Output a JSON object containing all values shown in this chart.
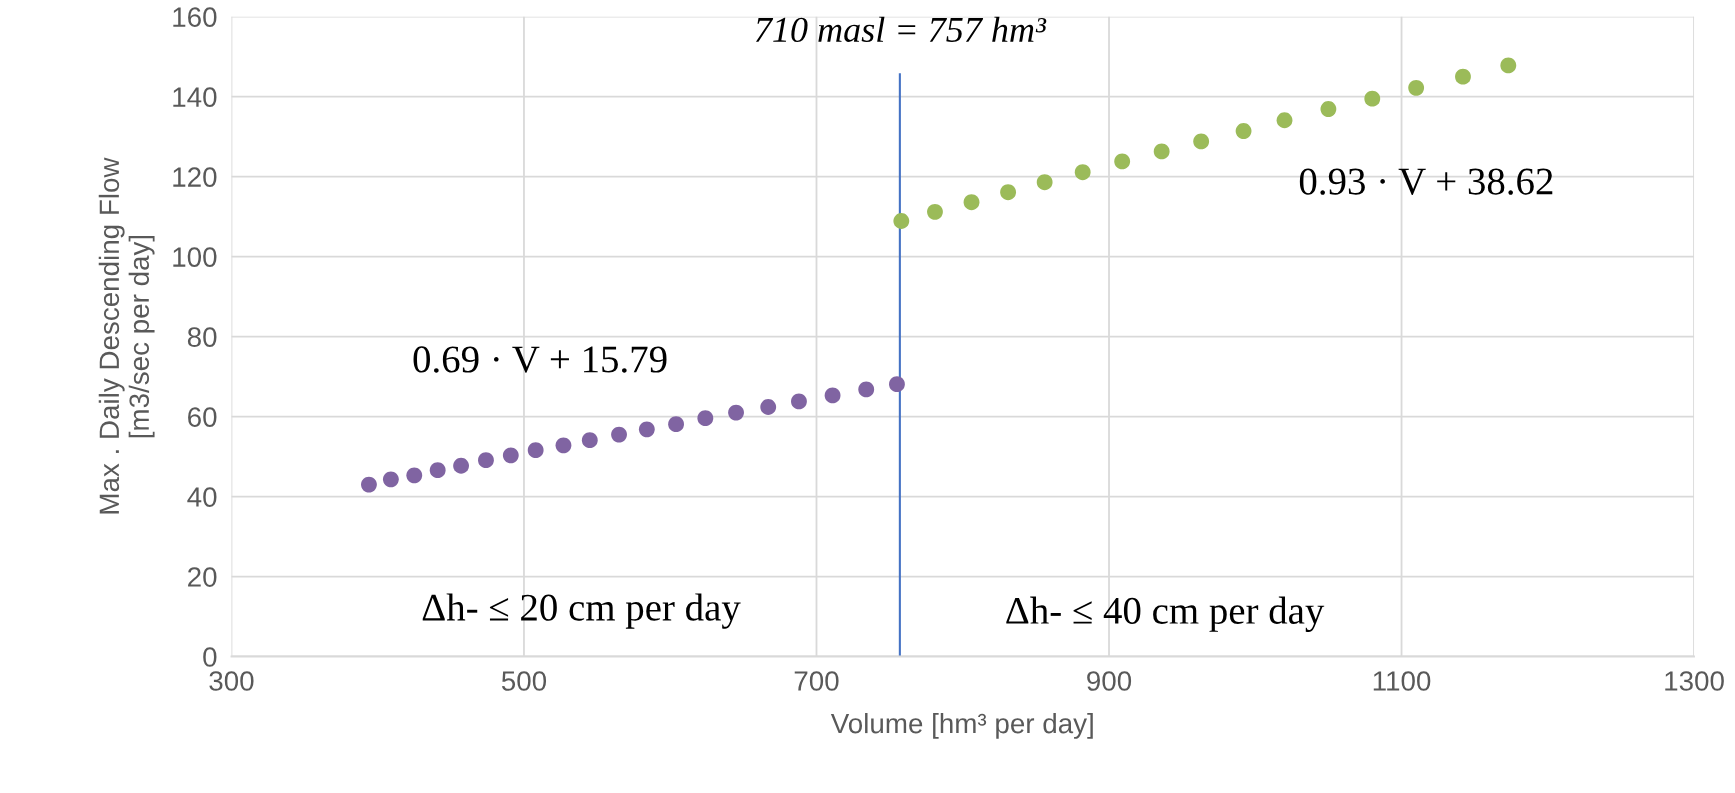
{
  "chart_data": {
    "type": "scatter",
    "xlabel": "Volume [hm³ per day]",
    "ylabel": "Max . Daily Descending Flow\n[m3/sec per day]",
    "series": [
      {
        "color": "#8064a2",
        "x": [
          394,
          409,
          425,
          441,
          457,
          474,
          491,
          508,
          527,
          545,
          565,
          584,
          604,
          624,
          645,
          667,
          688,
          711,
          734,
          755
        ],
        "values": [
          43.0,
          44.3,
          45.3,
          46.6,
          47.7,
          49.1,
          50.3,
          51.6,
          52.8,
          54.1,
          55.5,
          56.8,
          58.1,
          59.6,
          61.0,
          62.4,
          63.8,
          65.3,
          66.8,
          68.1
        ]
      },
      {
        "color": "#9bbb59",
        "x": [
          758,
          781,
          806,
          831,
          856,
          882,
          909,
          936,
          963,
          992,
          1020,
          1050,
          1080,
          1110,
          1142,
          1173
        ],
        "values": [
          108.9,
          111.2,
          113.6,
          116.1,
          118.6,
          121.1,
          123.8,
          126.3,
          128.8,
          131.4,
          134.1,
          136.9,
          139.5,
          142.2,
          145.0,
          147.8
        ]
      }
    ],
    "xlim": [
      300,
      1300
    ],
    "xticks": [
      300,
      500,
      700,
      900,
      1100,
      1300
    ],
    "ylim": [
      0,
      160
    ],
    "yticks": [
      0,
      20,
      40,
      60,
      80,
      100,
      120,
      140,
      160
    ],
    "ref_lines": [
      {
        "axis": "x",
        "value": 757,
        "label": "710 masl = 757 hm³",
        "color": "#4472c4"
      }
    ],
    "annotations": [
      "0.69 · V + 15.79",
      "0.93 · V + 38.62",
      "Δh- ≤ 20 cm per day",
      "Δh- ≤ 40 cm per day"
    ],
    "grid": true,
    "marker": "circle",
    "legend": false
  }
}
